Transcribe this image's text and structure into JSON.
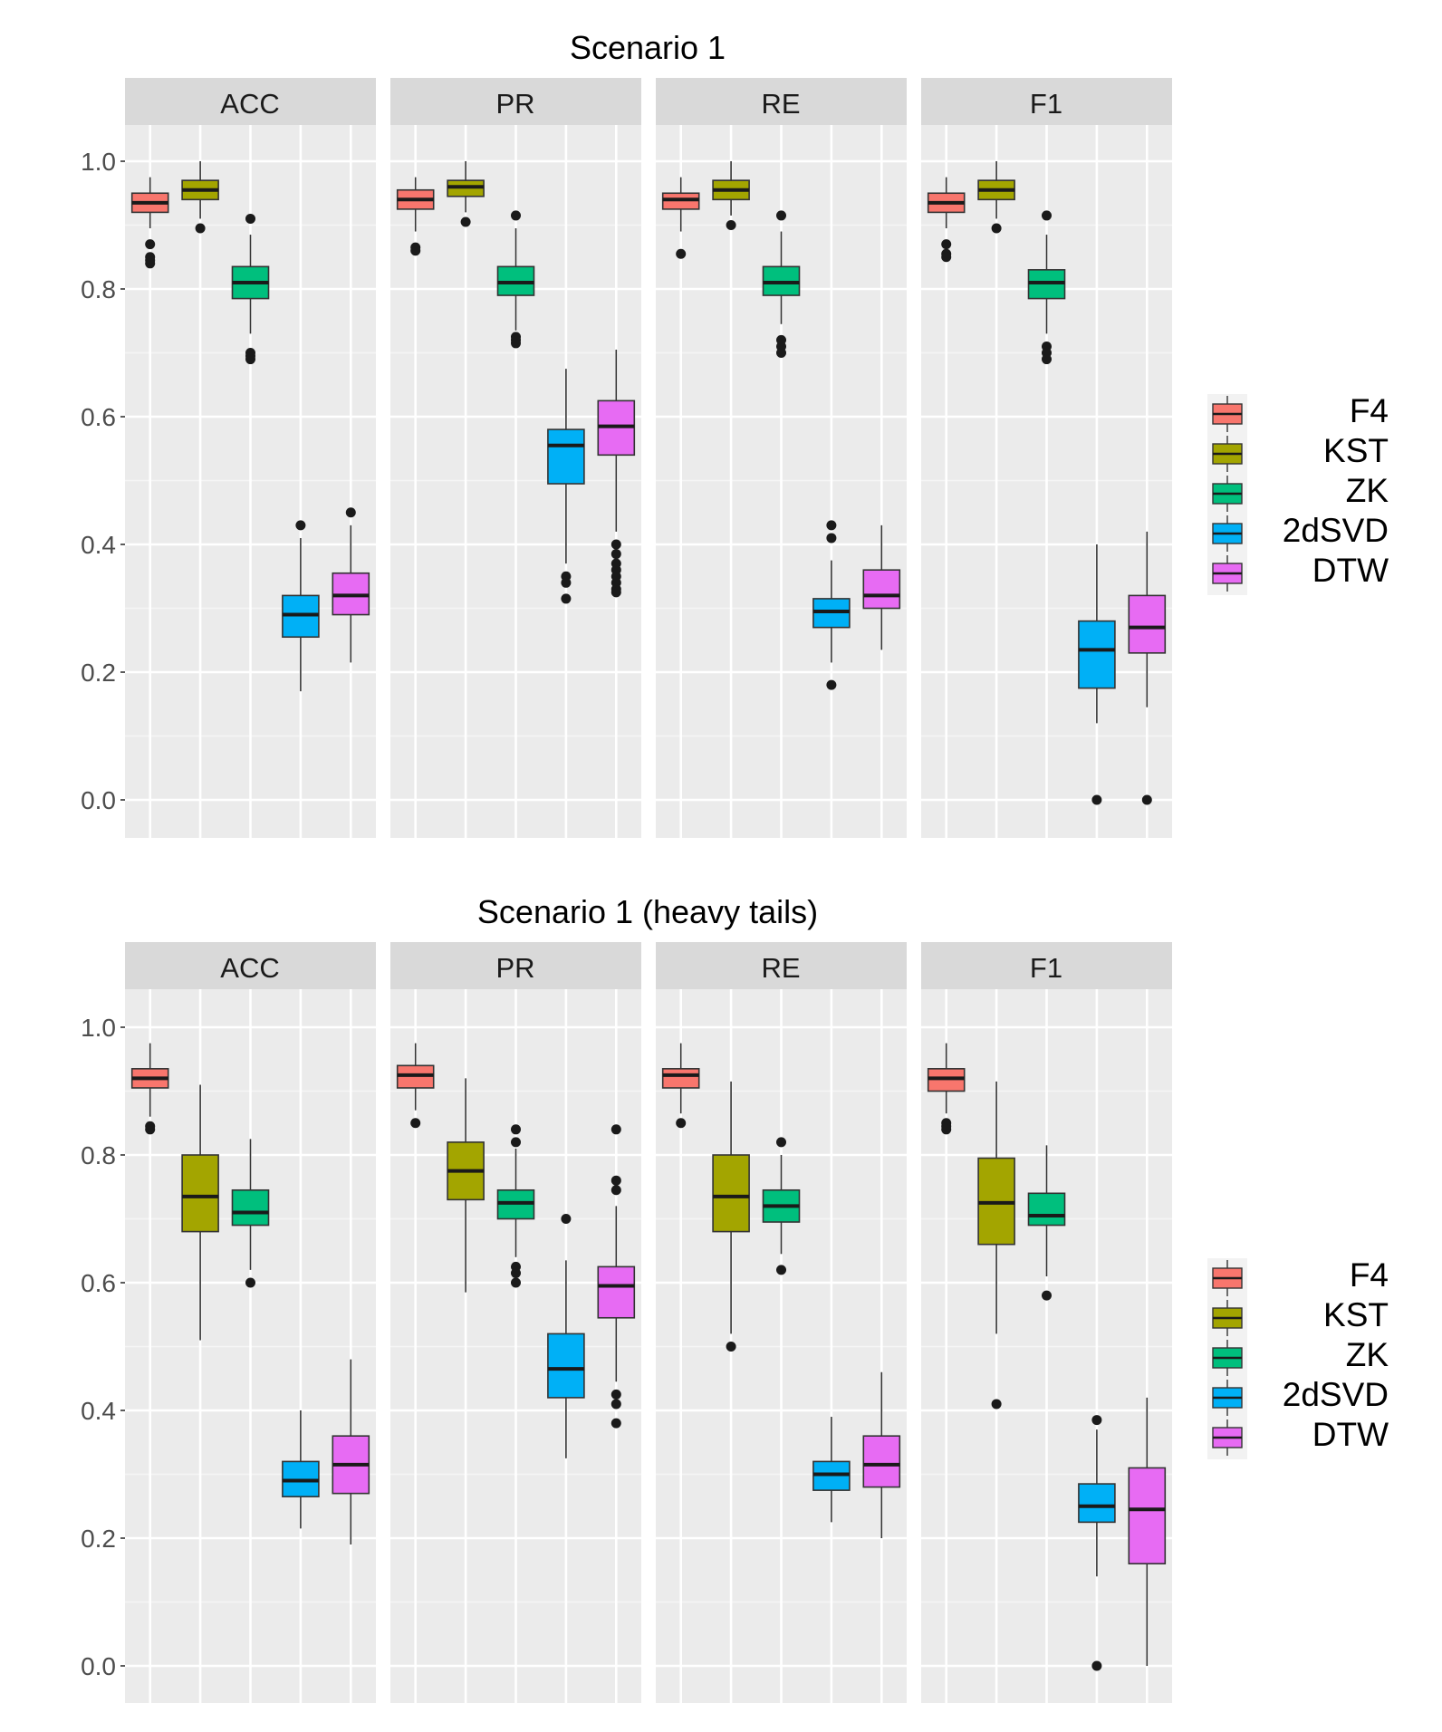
{
  "legend": {
    "items": [
      {
        "label": "F4",
        "color": "#F8766D"
      },
      {
        "label": "KST",
        "color": "#A3A500"
      },
      {
        "label": "ZK",
        "color": "#00BF7D"
      },
      {
        "label": "2dSVD",
        "color": "#00B0F6"
      },
      {
        "label": "DTW",
        "color": "#E76BF3"
      }
    ]
  },
  "chart_data": [
    {
      "type": "box",
      "title": "Scenario 1",
      "ylim": [
        -0.06,
        1.1
      ],
      "yticks": [
        0.0,
        0.2,
        0.4,
        0.6,
        0.8,
        1.0
      ],
      "ytick_labels": [
        "0.0",
        "0.2",
        "0.4",
        "0.6",
        "0.8",
        "1.0"
      ],
      "series_names": [
        "F4",
        "KST",
        "ZK",
        "2dSVD",
        "DTW"
      ],
      "facets": [
        {
          "name": "ACC",
          "boxes": [
            {
              "series": "F4",
              "whislo": 0.895,
              "q1": 0.92,
              "med": 0.935,
              "q3": 0.95,
              "whishi": 0.975,
              "outliers": [
                0.87,
                0.85,
                0.845,
                0.84
              ]
            },
            {
              "series": "KST",
              "whislo": 0.91,
              "q1": 0.94,
              "med": 0.955,
              "q3": 0.97,
              "whishi": 1.0,
              "outliers": [
                0.895
              ]
            },
            {
              "series": "ZK",
              "whislo": 0.73,
              "q1": 0.785,
              "med": 0.81,
              "q3": 0.835,
              "whishi": 0.885,
              "outliers": [
                0.91,
                0.7,
                0.695,
                0.69
              ]
            },
            {
              "series": "2dSVD",
              "whislo": 0.17,
              "q1": 0.255,
              "med": 0.29,
              "q3": 0.32,
              "whishi": 0.41,
              "outliers": [
                0.43
              ]
            },
            {
              "series": "DTW",
              "whislo": 0.215,
              "q1": 0.29,
              "med": 0.32,
              "q3": 0.355,
              "whishi": 0.43,
              "outliers": [
                0.45
              ]
            }
          ]
        },
        {
          "name": "PR",
          "boxes": [
            {
              "series": "F4",
              "whislo": 0.89,
              "q1": 0.925,
              "med": 0.94,
              "q3": 0.955,
              "whishi": 0.975,
              "outliers": [
                0.865,
                0.86
              ]
            },
            {
              "series": "KST",
              "whislo": 0.92,
              "q1": 0.945,
              "med": 0.96,
              "q3": 0.97,
              "whishi": 1.0,
              "outliers": [
                0.905
              ]
            },
            {
              "series": "ZK",
              "whislo": 0.735,
              "q1": 0.79,
              "med": 0.81,
              "q3": 0.835,
              "whishi": 0.895,
              "outliers": [
                0.915,
                0.725,
                0.72,
                0.715
              ]
            },
            {
              "series": "2dSVD",
              "whislo": 0.37,
              "q1": 0.495,
              "med": 0.555,
              "q3": 0.58,
              "whishi": 0.675,
              "outliers": [
                0.35,
                0.34,
                0.315
              ]
            },
            {
              "series": "DTW",
              "whislo": 0.42,
              "q1": 0.54,
              "med": 0.585,
              "q3": 0.625,
              "whishi": 0.705,
              "outliers": [
                0.4,
                0.385,
                0.37,
                0.36,
                0.35,
                0.34,
                0.33,
                0.325
              ]
            }
          ]
        },
        {
          "name": "RE",
          "boxes": [
            {
              "series": "F4",
              "whislo": 0.89,
              "q1": 0.925,
              "med": 0.94,
              "q3": 0.95,
              "whishi": 0.975,
              "outliers": [
                0.855
              ]
            },
            {
              "series": "KST",
              "whislo": 0.915,
              "q1": 0.94,
              "med": 0.955,
              "q3": 0.97,
              "whishi": 1.0,
              "outliers": [
                0.9
              ]
            },
            {
              "series": "ZK",
              "whislo": 0.745,
              "q1": 0.79,
              "med": 0.81,
              "q3": 0.835,
              "whishi": 0.89,
              "outliers": [
                0.915,
                0.72,
                0.71,
                0.7
              ]
            },
            {
              "series": "2dSVD",
              "whislo": 0.215,
              "q1": 0.27,
              "med": 0.295,
              "q3": 0.315,
              "whishi": 0.375,
              "outliers": [
                0.43,
                0.41,
                0.18
              ]
            },
            {
              "series": "DTW",
              "whislo": 0.235,
              "q1": 0.3,
              "med": 0.32,
              "q3": 0.36,
              "whishi": 0.43,
              "outliers": []
            }
          ]
        },
        {
          "name": "F1",
          "boxes": [
            {
              "series": "F4",
              "whislo": 0.895,
              "q1": 0.92,
              "med": 0.935,
              "q3": 0.95,
              "whishi": 0.975,
              "outliers": [
                0.87,
                0.855,
                0.85
              ]
            },
            {
              "series": "KST",
              "whislo": 0.91,
              "q1": 0.94,
              "med": 0.955,
              "q3": 0.97,
              "whishi": 1.0,
              "outliers": [
                0.895
              ]
            },
            {
              "series": "ZK",
              "whislo": 0.73,
              "q1": 0.785,
              "med": 0.81,
              "q3": 0.83,
              "whishi": 0.885,
              "outliers": [
                0.915,
                0.71,
                0.7,
                0.69
              ]
            },
            {
              "series": "2dSVD",
              "whislo": 0.12,
              "q1": 0.175,
              "med": 0.235,
              "q3": 0.28,
              "whishi": 0.4,
              "outliers": [
                0.0
              ]
            },
            {
              "series": "DTW",
              "whislo": 0.145,
              "q1": 0.23,
              "med": 0.27,
              "q3": 0.32,
              "whishi": 0.42,
              "outliers": [
                0.0
              ]
            }
          ]
        }
      ]
    },
    {
      "type": "box",
      "title": "Scenario 1 (heavy tails)",
      "ylim": [
        -0.06,
        1.1
      ],
      "yticks": [
        0.0,
        0.2,
        0.4,
        0.6,
        0.8,
        1.0
      ],
      "ytick_labels": [
        "0.0",
        "0.2",
        "0.4",
        "0.6",
        "0.8",
        "1.0"
      ],
      "series_names": [
        "F4",
        "KST",
        "ZK",
        "2dSVD",
        "DTW"
      ],
      "facets": [
        {
          "name": "ACC",
          "boxes": [
            {
              "series": "F4",
              "whislo": 0.86,
              "q1": 0.905,
              "med": 0.92,
              "q3": 0.935,
              "whishi": 0.975,
              "outliers": [
                0.845,
                0.84
              ]
            },
            {
              "series": "KST",
              "whislo": 0.51,
              "q1": 0.68,
              "med": 0.735,
              "q3": 0.8,
              "whishi": 0.91,
              "outliers": []
            },
            {
              "series": "ZK",
              "whislo": 0.62,
              "q1": 0.69,
              "med": 0.71,
              "q3": 0.745,
              "whishi": 0.825,
              "outliers": [
                0.6
              ]
            },
            {
              "series": "2dSVD",
              "whislo": 0.215,
              "q1": 0.265,
              "med": 0.29,
              "q3": 0.32,
              "whishi": 0.4,
              "outliers": []
            },
            {
              "series": "DTW",
              "whislo": 0.19,
              "q1": 0.27,
              "med": 0.315,
              "q3": 0.36,
              "whishi": 0.48,
              "outliers": []
            }
          ]
        },
        {
          "name": "PR",
          "boxes": [
            {
              "series": "F4",
              "whislo": 0.87,
              "q1": 0.905,
              "med": 0.925,
              "q3": 0.94,
              "whishi": 0.975,
              "outliers": [
                0.85
              ]
            },
            {
              "series": "KST",
              "whislo": 0.585,
              "q1": 0.73,
              "med": 0.775,
              "q3": 0.82,
              "whishi": 0.92,
              "outliers": []
            },
            {
              "series": "ZK",
              "whislo": 0.64,
              "q1": 0.7,
              "med": 0.725,
              "q3": 0.745,
              "whishi": 0.81,
              "outliers": [
                0.84,
                0.82,
                0.625,
                0.615,
                0.6
              ]
            },
            {
              "series": "2dSVD",
              "whislo": 0.325,
              "q1": 0.42,
              "med": 0.465,
              "q3": 0.52,
              "whishi": 0.635,
              "outliers": [
                0.7
              ]
            },
            {
              "series": "DTW",
              "whislo": 0.445,
              "q1": 0.545,
              "med": 0.595,
              "q3": 0.625,
              "whishi": 0.72,
              "outliers": [
                0.84,
                0.76,
                0.745,
                0.425,
                0.41,
                0.38
              ]
            }
          ]
        },
        {
          "name": "RE",
          "boxes": [
            {
              "series": "F4",
              "whislo": 0.865,
              "q1": 0.905,
              "med": 0.925,
              "q3": 0.935,
              "whishi": 0.975,
              "outliers": [
                0.85
              ]
            },
            {
              "series": "KST",
              "whislo": 0.52,
              "q1": 0.68,
              "med": 0.735,
              "q3": 0.8,
              "whishi": 0.915,
              "outliers": [
                0.5
              ]
            },
            {
              "series": "ZK",
              "whislo": 0.645,
              "q1": 0.695,
              "med": 0.72,
              "q3": 0.745,
              "whishi": 0.8,
              "outliers": [
                0.82,
                0.62
              ]
            },
            {
              "series": "2dSVD",
              "whislo": 0.225,
              "q1": 0.275,
              "med": 0.3,
              "q3": 0.32,
              "whishi": 0.39,
              "outliers": []
            },
            {
              "series": "DTW",
              "whislo": 0.2,
              "q1": 0.28,
              "med": 0.315,
              "q3": 0.36,
              "whishi": 0.46,
              "outliers": []
            }
          ]
        },
        {
          "name": "F1",
          "boxes": [
            {
              "series": "F4",
              "whislo": 0.865,
              "q1": 0.9,
              "med": 0.92,
              "q3": 0.935,
              "whishi": 0.975,
              "outliers": [
                0.85,
                0.845,
                0.84
              ]
            },
            {
              "series": "KST",
              "whislo": 0.52,
              "q1": 0.66,
              "med": 0.725,
              "q3": 0.795,
              "whishi": 0.915,
              "outliers": [
                0.41
              ]
            },
            {
              "series": "ZK",
              "whislo": 0.61,
              "q1": 0.69,
              "med": 0.705,
              "q3": 0.74,
              "whishi": 0.815,
              "outliers": [
                0.58
              ]
            },
            {
              "series": "2dSVD",
              "whislo": 0.14,
              "q1": 0.225,
              "med": 0.25,
              "q3": 0.285,
              "whishi": 0.37,
              "outliers": [
                0.385,
                0.0
              ]
            },
            {
              "series": "DTW",
              "whislo": 0.0,
              "q1": 0.16,
              "med": 0.245,
              "q3": 0.31,
              "whishi": 0.42,
              "outliers": []
            }
          ]
        }
      ]
    }
  ]
}
